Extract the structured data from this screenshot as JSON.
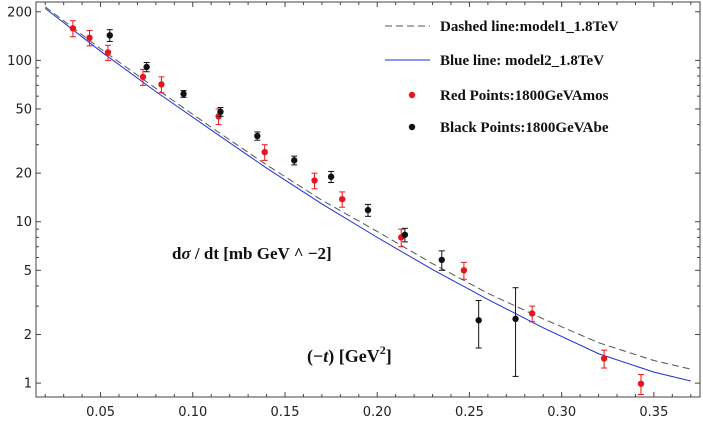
{
  "chart_data": {
    "type": "scatter",
    "yscale": "log",
    "xlim": [
      0.015,
      0.375
    ],
    "ylim": [
      0.82,
      230
    ],
    "xticks": [
      0.05,
      0.1,
      0.15,
      0.2,
      0.25,
      0.3,
      0.35
    ],
    "xtick_labels": [
      "0.05",
      "0.10",
      "0.15",
      "0.20",
      "0.25",
      "0.30",
      "0.35"
    ],
    "yticks": [
      1,
      2,
      5,
      10,
      20,
      50,
      100,
      200
    ],
    "ytick_labels": [
      "1",
      "2",
      "5",
      "10",
      "20",
      "50",
      "100",
      "200"
    ],
    "annotations": {
      "ylabel_prefix": "d",
      "ylabel_sigma": "σ",
      "ylabel_rest": " / dt [mb GeV ^ −2]",
      "xlabel_left": "(−",
      "xlabel_t": "t",
      "xlabel_mid": ") [GeV",
      "xlabel_exp": "2",
      "xlabel_right": "]"
    },
    "legend": {
      "placement": "top-right",
      "entries": [
        {
          "label": "Dashed line:model1_1.8TeV",
          "style": "dashed",
          "color": "#555555"
        },
        {
          "label": "Blue line: model2_1.8TeV",
          "style": "solid",
          "color": "#1f2fd8"
        },
        {
          "label": "Red Points:1800GeVAmos",
          "style": "point",
          "color": "#e8161b"
        },
        {
          "label": "Black Points:1800GeVAbe",
          "style": "point",
          "color": "#111111"
        }
      ]
    },
    "series": [
      {
        "name": "Dashed line:model1_1.8TeV",
        "kind": "line",
        "style": "dashed",
        "color": "#555555",
        "x": [
          0.02,
          0.05,
          0.08,
          0.11,
          0.14,
          0.17,
          0.2,
          0.23,
          0.26,
          0.29,
          0.32,
          0.35,
          0.37
        ],
        "y": [
          215,
          118,
          67,
          38.5,
          22.5,
          13.6,
          8.7,
          5.5,
          3.6,
          2.5,
          1.78,
          1.38,
          1.22
        ]
      },
      {
        "name": "Blue line: model2_1.8TeV",
        "kind": "line",
        "style": "solid",
        "color": "#1f2fd8",
        "x": [
          0.02,
          0.05,
          0.08,
          0.11,
          0.14,
          0.17,
          0.2,
          0.23,
          0.26,
          0.29,
          0.32,
          0.35,
          0.37
        ],
        "y": [
          210,
          114,
          64,
          37,
          21.5,
          12.9,
          8.0,
          5.05,
          3.3,
          2.2,
          1.52,
          1.17,
          1.03
        ]
      },
      {
        "name": "Red Points:1800GeVAmos",
        "kind": "points",
        "color": "#e8161b",
        "x": [
          0.035,
          0.044,
          0.054,
          0.073,
          0.083,
          0.114,
          0.139,
          0.166,
          0.181,
          0.213,
          0.247,
          0.284,
          0.323,
          0.343
        ],
        "y": [
          158,
          138,
          112,
          79,
          71,
          45,
          27,
          18,
          13.8,
          8.0,
          5.0,
          2.7,
          1.42,
          0.99
        ],
        "err": [
          18,
          15,
          12,
          9,
          8,
          5,
          3,
          2,
          1.5,
          1.0,
          0.6,
          0.3,
          0.18,
          0.14
        ]
      },
      {
        "name": "Black Points:1800GeVAbe",
        "kind": "points",
        "color": "#111111",
        "x": [
          0.055,
          0.075,
          0.095,
          0.115,
          0.135,
          0.155,
          0.175,
          0.195,
          0.215,
          0.235,
          0.255,
          0.275
        ],
        "y": [
          143,
          91,
          62,
          48,
          34,
          24,
          19,
          11.8,
          8.3,
          5.8,
          2.45,
          2.5
        ],
        "err": [
          12,
          6,
          3,
          3,
          2,
          1.5,
          1.5,
          1.0,
          0.8,
          0.8,
          0.8,
          1.4
        ]
      }
    ]
  }
}
